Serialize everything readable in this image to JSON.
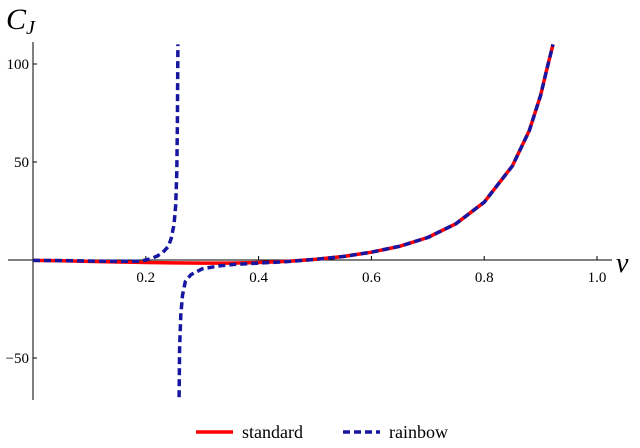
{
  "chart_data": {
    "type": "line",
    "xlabel": "ν",
    "ylabel_main": "C",
    "ylabel_sub": "J",
    "xlim": [
      0.0,
      1.0
    ],
    "ylim": [
      -70,
      110
    ],
    "x_ticks": [
      {
        "value": 0.2,
        "label": "0.2"
      },
      {
        "value": 0.4,
        "label": "0.4"
      },
      {
        "value": 0.6,
        "label": "0.6"
      },
      {
        "value": 0.8,
        "label": "0.8"
      },
      {
        "value": 1.0,
        "label": "1.0"
      }
    ],
    "y_ticks": [
      {
        "value": 100,
        "label": "100"
      },
      {
        "value": 50,
        "label": "50"
      },
      {
        "value": -50,
        "label": "−50"
      }
    ],
    "grid": false,
    "legend_position": "bottom-center",
    "series": [
      {
        "name": "standard",
        "color": "#ff0000",
        "style": "solid",
        "segments": [
          [
            [
              0.0,
              -0.2
            ],
            [
              0.05,
              -0.4
            ],
            [
              0.1,
              -0.7
            ],
            [
              0.15,
              -1.0
            ],
            [
              0.2,
              -1.3
            ],
            [
              0.25,
              -1.5
            ],
            [
              0.3,
              -1.6
            ],
            [
              0.35,
              -1.6
            ],
            [
              0.4,
              -1.3
            ],
            [
              0.45,
              -0.7
            ],
            [
              0.5,
              0.3
            ],
            [
              0.55,
              1.8
            ],
            [
              0.6,
              4.0
            ],
            [
              0.65,
              7.0
            ],
            [
              0.7,
              11.5
            ],
            [
              0.75,
              18.5
            ],
            [
              0.8,
              29.5
            ],
            [
              0.85,
              48.0
            ],
            [
              0.88,
              66.0
            ],
            [
              0.9,
              84.0
            ],
            [
              0.91,
              96.0
            ],
            [
              0.922,
              110.0
            ]
          ]
        ]
      },
      {
        "name": "rainbow",
        "color": "#1616a0",
        "style": "dashed",
        "segments": [
          [
            [
              0.0,
              -0.2
            ],
            [
              0.05,
              -0.3
            ],
            [
              0.1,
              -0.5
            ],
            [
              0.15,
              -0.7
            ],
            [
              0.19,
              -0.6
            ],
            [
              0.2,
              0.0
            ],
            [
              0.21,
              0.8
            ],
            [
              0.22,
              2.0
            ],
            [
              0.23,
              3.8
            ],
            [
              0.24,
              7.0
            ],
            [
              0.245,
              11.0
            ],
            [
              0.25,
              18.0
            ],
            [
              0.253,
              28.0
            ],
            [
              0.255,
              45.0
            ],
            [
              0.256,
              70.0
            ],
            [
              0.257,
              110.0
            ]
          ],
          [
            [
              0.259,
              -70.0
            ],
            [
              0.26,
              -45.0
            ],
            [
              0.262,
              -28.0
            ],
            [
              0.265,
              -18.0
            ],
            [
              0.27,
              -11.0
            ],
            [
              0.28,
              -7.5
            ],
            [
              0.3,
              -4.5
            ],
            [
              0.33,
              -3.0
            ],
            [
              0.36,
              -2.2
            ],
            [
              0.4,
              -1.6
            ],
            [
              0.45,
              -0.8
            ],
            [
              0.5,
              0.3
            ],
            [
              0.55,
              1.8
            ],
            [
              0.6,
              4.0
            ],
            [
              0.65,
              7.0
            ],
            [
              0.7,
              11.5
            ],
            [
              0.75,
              18.5
            ],
            [
              0.8,
              29.5
            ],
            [
              0.85,
              48.0
            ],
            [
              0.88,
              66.0
            ],
            [
              0.9,
              84.0
            ],
            [
              0.91,
              96.0
            ],
            [
              0.922,
              110.0
            ]
          ]
        ]
      }
    ]
  }
}
